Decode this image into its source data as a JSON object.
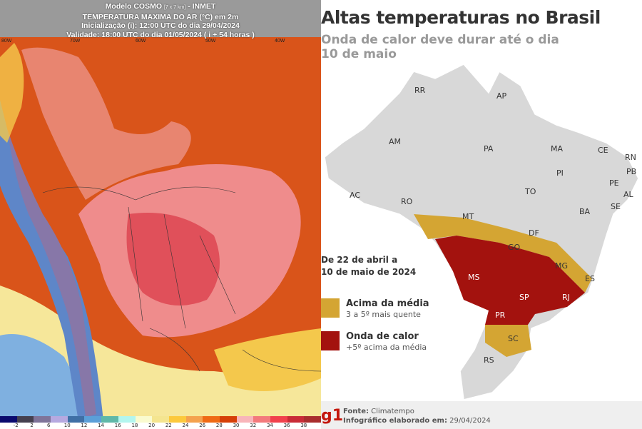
{
  "forecast_map": {
    "header": {
      "line1_a": "Modelo COSMO",
      "line1_res": "[7 x 7 km]",
      "line1_b": "- INMET",
      "line2": "TEMPERATURA MAXIMA DO AR (°C) em 2m",
      "line3": "Inicialização (i): 12:00 UTC do dia 29/04/2024",
      "line4": "Validade: 18:00 UTC do dia 01/05/2024 ( i + 54 horas )"
    },
    "longitude_labels": [
      "80W",
      "70W",
      "60W",
      "50W",
      "40W"
    ],
    "colorbar": {
      "colors": [
        "#0a0a6e",
        "#45404f",
        "#7f7499",
        "#b6a9e0",
        "#3f6fa5",
        "#5b9fd8",
        "#5fb8a8",
        "#b3f6ef",
        "#fafbcf",
        "#f4e58f",
        "#fcc93c",
        "#f4a24e",
        "#ef6a14",
        "#d63f07",
        "#f8b5ba",
        "#f37a7c",
        "#f1414c",
        "#c92c37",
        "#a92e2e"
      ],
      "ticks": [
        "-2",
        "2",
        "6",
        "10",
        "12",
        "14",
        "16",
        "18",
        "20",
        "22",
        "24",
        "26",
        "28",
        "30",
        "32",
        "34",
        "36",
        "38"
      ]
    }
  },
  "infographic": {
    "title": "Altas temperaturas no Brasil",
    "subtitle_1": "Onda de calor deve durar até o dia",
    "subtitle_2": "10 de maio",
    "period_1": "De 22 de abril a",
    "period_2": "10 de maio de 2024",
    "legend": [
      {
        "title": "Acima da média",
        "desc": "3 a 5º mais quente",
        "color": "#d4a533"
      },
      {
        "title": "Onda de calor",
        "desc": "+5º acima da média",
        "color": "#a3120e"
      }
    ],
    "states": [
      "RR",
      "AP",
      "AM",
      "PA",
      "MA",
      "CE",
      "RN",
      "PB",
      "PI",
      "PE",
      "AL",
      "SE",
      "AC",
      "RO",
      "TO",
      "BA",
      "MT",
      "DF",
      "GO",
      "MG",
      "ES",
      "MS",
      "SP",
      "RJ",
      "PR",
      "SC",
      "RS"
    ],
    "footer": {
      "logo": "g1",
      "source_label": "Fonte:",
      "source": "Climatempo",
      "date_label": "Infográfico elaborado em:",
      "date": "29/04/2024"
    }
  }
}
